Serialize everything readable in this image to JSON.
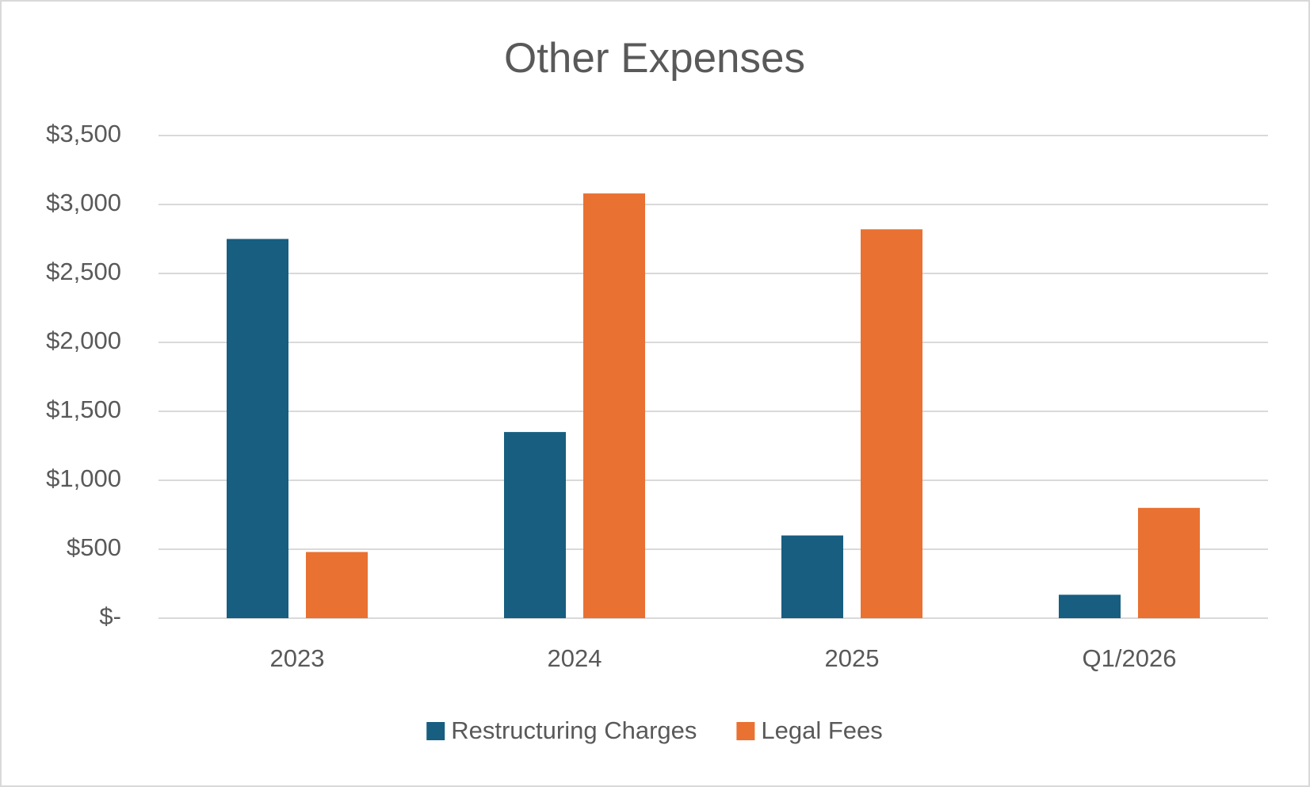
{
  "chart_data": {
    "type": "bar",
    "title": "Other Expenses",
    "categories": [
      "2023",
      "2024",
      "2025",
      "Q1/2026"
    ],
    "series": [
      {
        "name": "Restructuring Charges",
        "color": "#175e80",
        "values": [
          2750,
          1350,
          600,
          170
        ]
      },
      {
        "name": "Legal Fees",
        "color": "#e97132",
        "values": [
          480,
          3080,
          2820,
          800
        ]
      }
    ],
    "ylim": [
      0,
      3500
    ],
    "yticks": [
      {
        "value": 0,
        "label": "$-"
      },
      {
        "value": 500,
        "label": "$500"
      },
      {
        "value": 1000,
        "label": "$1,000"
      },
      {
        "value": 1500,
        "label": "$1,500"
      },
      {
        "value": 2000,
        "label": "$2,000"
      },
      {
        "value": 2500,
        "label": "$2,500"
      },
      {
        "value": 3000,
        "label": "$3,000"
      },
      {
        "value": 3500,
        "label": "$3,500"
      }
    ],
    "grid": true,
    "legend": "bottom"
  }
}
